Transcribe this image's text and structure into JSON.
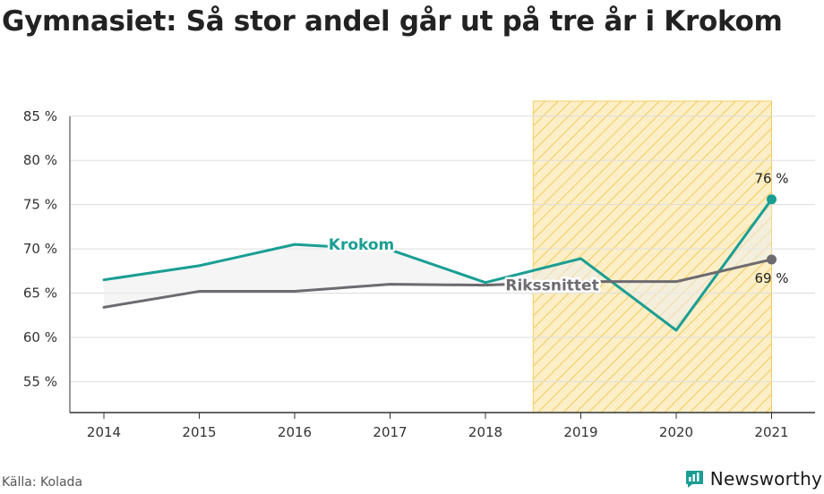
{
  "title": "Gymnasiet: Så stor andel går ut på tre år i Krokom",
  "source": "Källa: Kolada",
  "brand": "Newsworthy",
  "colors": {
    "krokom": "#1a9e93",
    "riks": "#6d6a70",
    "highlight_fill": "#fcefc7",
    "highlight_hatch": "#f3cd63",
    "grid": "#dddddd",
    "axis": "#333333",
    "logo": "#1a9e93"
  },
  "chart_data": {
    "type": "line",
    "title": "Gymnasiet: Så stor andel går ut på tre år i Krokom",
    "x": [
      2014,
      2015,
      2016,
      2017,
      2018,
      2019,
      2020,
      2021
    ],
    "x_tick_labels": [
      "2014",
      "2015",
      "2016",
      "2017",
      "2018",
      "2019",
      "2020",
      "2021"
    ],
    "ylim": [
      51.5,
      87
    ],
    "y_ticks": [
      55,
      60,
      65,
      70,
      75,
      80,
      85
    ],
    "y_tick_labels": [
      "55 %",
      "60 %",
      "65 %",
      "70 %",
      "75 %",
      "80 %",
      "85 %"
    ],
    "grid": true,
    "highlight_range": [
      2018.5,
      2021
    ],
    "series": [
      {
        "name": "Krokom",
        "values": [
          66.5,
          68.1,
          70.5,
          69.9,
          66.2,
          68.9,
          60.8,
          75.6
        ],
        "end_label": "76 %"
      },
      {
        "name": "Rikssnittet",
        "values": [
          63.4,
          65.2,
          65.2,
          66.0,
          65.9,
          66.3,
          66.3,
          68.8
        ],
        "end_label": "69 %"
      }
    ]
  }
}
